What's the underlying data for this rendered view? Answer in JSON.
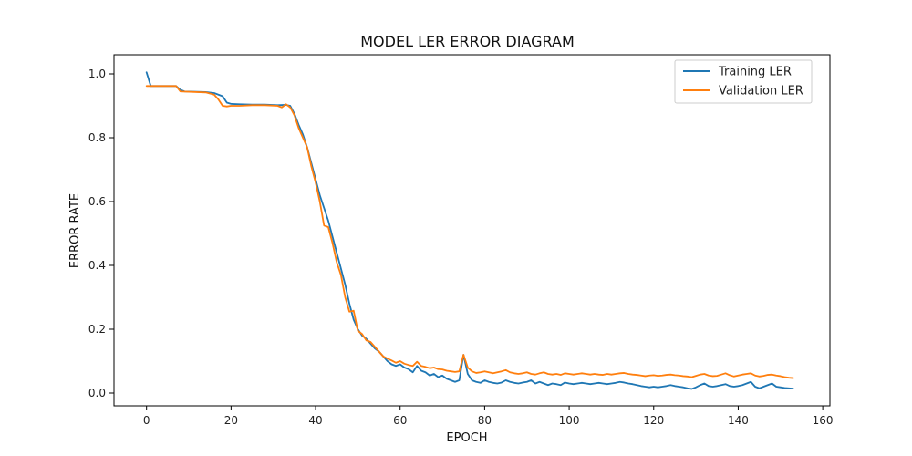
{
  "chart_data": {
    "type": "line",
    "title": "MODEL LER ERROR DIAGRAM",
    "xlabel": "EPOCH",
    "ylabel": "ERROR RATE",
    "xlim": [
      -7.7,
      161.7
    ],
    "ylim": [
      -0.04,
      1.06
    ],
    "xticks": [
      0,
      20,
      40,
      60,
      80,
      100,
      120,
      140,
      160
    ],
    "yticks": [
      0.0,
      0.2,
      0.4,
      0.6,
      0.8,
      1.0
    ],
    "xtick_labels": [
      "0",
      "20",
      "40",
      "60",
      "80",
      "100",
      "120",
      "140",
      "160"
    ],
    "ytick_labels": [
      "0.0",
      "0.2",
      "0.4",
      "0.6",
      "0.8",
      "1.0"
    ],
    "grid": false,
    "legend_position": "top-right",
    "legend": [
      "Training LER",
      "Validation LER"
    ],
    "series": [
      {
        "name": "Training LER",
        "color": "#1f77b4",
        "points": [
          [
            0,
            1.005
          ],
          [
            1,
            0.962
          ],
          [
            7,
            0.962
          ],
          [
            8,
            0.95
          ],
          [
            9,
            0.945
          ],
          [
            14,
            0.943
          ],
          [
            16,
            0.94
          ],
          [
            18,
            0.93
          ],
          [
            19,
            0.91
          ],
          [
            20,
            0.906
          ],
          [
            22,
            0.905
          ],
          [
            25,
            0.904
          ],
          [
            28,
            0.904
          ],
          [
            31,
            0.902
          ],
          [
            33,
            0.903
          ],
          [
            34,
            0.9
          ],
          [
            35,
            0.875
          ],
          [
            36,
            0.84
          ],
          [
            37,
            0.81
          ],
          [
            38,
            0.77
          ],
          [
            39,
            0.72
          ],
          [
            40,
            0.67
          ],
          [
            41,
            0.62
          ],
          [
            42,
            0.58
          ],
          [
            43,
            0.54
          ],
          [
            44,
            0.49
          ],
          [
            45,
            0.44
          ],
          [
            46,
            0.39
          ],
          [
            47,
            0.34
          ],
          [
            48,
            0.28
          ],
          [
            49,
            0.23
          ],
          [
            50,
            0.2
          ],
          [
            51,
            0.18
          ],
          [
            52,
            0.17
          ],
          [
            53,
            0.155
          ],
          [
            54,
            0.14
          ],
          [
            55,
            0.13
          ],
          [
            56,
            0.115
          ],
          [
            57,
            0.1
          ],
          [
            58,
            0.09
          ],
          [
            59,
            0.085
          ],
          [
            60,
            0.09
          ],
          [
            61,
            0.08
          ],
          [
            62,
            0.075
          ],
          [
            63,
            0.065
          ],
          [
            64,
            0.085
          ],
          [
            65,
            0.07
          ],
          [
            66,
            0.065
          ],
          [
            67,
            0.055
          ],
          [
            68,
            0.06
          ],
          [
            69,
            0.05
          ],
          [
            70,
            0.055
          ],
          [
            71,
            0.045
          ],
          [
            72,
            0.04
          ],
          [
            73,
            0.035
          ],
          [
            74,
            0.04
          ],
          [
            75,
            0.12
          ],
          [
            76,
            0.06
          ],
          [
            77,
            0.04
          ],
          [
            78,
            0.035
          ],
          [
            79,
            0.032
          ],
          [
            80,
            0.04
          ],
          [
            81,
            0.035
          ],
          [
            82,
            0.032
          ],
          [
            83,
            0.03
          ],
          [
            84,
            0.033
          ],
          [
            85,
            0.04
          ],
          [
            86,
            0.035
          ],
          [
            87,
            0.032
          ],
          [
            88,
            0.03
          ],
          [
            89,
            0.033
          ],
          [
            90,
            0.035
          ],
          [
            91,
            0.04
          ],
          [
            92,
            0.03
          ],
          [
            93,
            0.035
          ],
          [
            94,
            0.03
          ],
          [
            95,
            0.025
          ],
          [
            96,
            0.03
          ],
          [
            97,
            0.028
          ],
          [
            98,
            0.025
          ],
          [
            99,
            0.033
          ],
          [
            100,
            0.03
          ],
          [
            101,
            0.028
          ],
          [
            102,
            0.03
          ],
          [
            103,
            0.032
          ],
          [
            104,
            0.03
          ],
          [
            105,
            0.028
          ],
          [
            106,
            0.03
          ],
          [
            107,
            0.032
          ],
          [
            108,
            0.03
          ],
          [
            109,
            0.028
          ],
          [
            110,
            0.03
          ],
          [
            111,
            0.032
          ],
          [
            112,
            0.035
          ],
          [
            113,
            0.033
          ],
          [
            114,
            0.03
          ],
          [
            115,
            0.028
          ],
          [
            116,
            0.025
          ],
          [
            117,
            0.022
          ],
          [
            118,
            0.02
          ],
          [
            119,
            0.018
          ],
          [
            120,
            0.02
          ],
          [
            121,
            0.018
          ],
          [
            122,
            0.02
          ],
          [
            123,
            0.022
          ],
          [
            124,
            0.025
          ],
          [
            125,
            0.022
          ],
          [
            126,
            0.02
          ],
          [
            127,
            0.018
          ],
          [
            128,
            0.015
          ],
          [
            129,
            0.013
          ],
          [
            130,
            0.018
          ],
          [
            131,
            0.025
          ],
          [
            132,
            0.03
          ],
          [
            133,
            0.022
          ],
          [
            134,
            0.02
          ],
          [
            135,
            0.022
          ],
          [
            136,
            0.025
          ],
          [
            137,
            0.028
          ],
          [
            138,
            0.022
          ],
          [
            139,
            0.02
          ],
          [
            140,
            0.022
          ],
          [
            141,
            0.025
          ],
          [
            142,
            0.03
          ],
          [
            143,
            0.035
          ],
          [
            144,
            0.02
          ],
          [
            145,
            0.015
          ],
          [
            146,
            0.02
          ],
          [
            147,
            0.025
          ],
          [
            148,
            0.03
          ],
          [
            149,
            0.02
          ],
          [
            150,
            0.018
          ],
          [
            151,
            0.016
          ],
          [
            152,
            0.015
          ],
          [
            153,
            0.014
          ]
        ]
      },
      {
        "name": "Validation LER",
        "color": "#ff7f0e",
        "points": [
          [
            0,
            0.962
          ],
          [
            7,
            0.962
          ],
          [
            8,
            0.945
          ],
          [
            14,
            0.942
          ],
          [
            16,
            0.935
          ],
          [
            17,
            0.92
          ],
          [
            18,
            0.9
          ],
          [
            19,
            0.898
          ],
          [
            20,
            0.9
          ],
          [
            22,
            0.9
          ],
          [
            25,
            0.902
          ],
          [
            28,
            0.902
          ],
          [
            31,
            0.9
          ],
          [
            32,
            0.895
          ],
          [
            33,
            0.905
          ],
          [
            34,
            0.895
          ],
          [
            35,
            0.87
          ],
          [
            36,
            0.83
          ],
          [
            37,
            0.8
          ],
          [
            38,
            0.77
          ],
          [
            39,
            0.71
          ],
          [
            40,
            0.66
          ],
          [
            41,
            0.6
          ],
          [
            42,
            0.525
          ],
          [
            43,
            0.52
          ],
          [
            44,
            0.47
          ],
          [
            45,
            0.41
          ],
          [
            46,
            0.37
          ],
          [
            47,
            0.3
          ],
          [
            48,
            0.255
          ],
          [
            49,
            0.258
          ],
          [
            50,
            0.195
          ],
          [
            51,
            0.185
          ],
          [
            52,
            0.165
          ],
          [
            53,
            0.16
          ],
          [
            54,
            0.145
          ],
          [
            55,
            0.13
          ],
          [
            56,
            0.115
          ],
          [
            57,
            0.108
          ],
          [
            58,
            0.102
          ],
          [
            59,
            0.095
          ],
          [
            60,
            0.1
          ],
          [
            61,
            0.092
          ],
          [
            62,
            0.088
          ],
          [
            63,
            0.085
          ],
          [
            64,
            0.098
          ],
          [
            65,
            0.085
          ],
          [
            66,
            0.082
          ],
          [
            67,
            0.078
          ],
          [
            68,
            0.08
          ],
          [
            69,
            0.075
          ],
          [
            70,
            0.074
          ],
          [
            71,
            0.07
          ],
          [
            72,
            0.068
          ],
          [
            73,
            0.066
          ],
          [
            74,
            0.068
          ],
          [
            75,
            0.12
          ],
          [
            76,
            0.08
          ],
          [
            77,
            0.068
          ],
          [
            78,
            0.063
          ],
          [
            79,
            0.065
          ],
          [
            80,
            0.068
          ],
          [
            81,
            0.065
          ],
          [
            82,
            0.062
          ],
          [
            83,
            0.065
          ],
          [
            84,
            0.068
          ],
          [
            85,
            0.072
          ],
          [
            86,
            0.065
          ],
          [
            87,
            0.062
          ],
          [
            88,
            0.06
          ],
          [
            89,
            0.062
          ],
          [
            90,
            0.065
          ],
          [
            91,
            0.06
          ],
          [
            92,
            0.058
          ],
          [
            93,
            0.062
          ],
          [
            94,
            0.065
          ],
          [
            95,
            0.06
          ],
          [
            96,
            0.058
          ],
          [
            97,
            0.06
          ],
          [
            98,
            0.057
          ],
          [
            99,
            0.062
          ],
          [
            100,
            0.06
          ],
          [
            101,
            0.058
          ],
          [
            102,
            0.06
          ],
          [
            103,
            0.062
          ],
          [
            104,
            0.06
          ],
          [
            105,
            0.058
          ],
          [
            106,
            0.06
          ],
          [
            107,
            0.058
          ],
          [
            108,
            0.057
          ],
          [
            109,
            0.06
          ],
          [
            110,
            0.058
          ],
          [
            111,
            0.06
          ],
          [
            112,
            0.062
          ],
          [
            113,
            0.063
          ],
          [
            114,
            0.06
          ],
          [
            115,
            0.058
          ],
          [
            116,
            0.057
          ],
          [
            117,
            0.055
          ],
          [
            118,
            0.053
          ],
          [
            119,
            0.055
          ],
          [
            120,
            0.056
          ],
          [
            121,
            0.054
          ],
          [
            122,
            0.055
          ],
          [
            123,
            0.057
          ],
          [
            124,
            0.058
          ],
          [
            125,
            0.056
          ],
          [
            126,
            0.055
          ],
          [
            127,
            0.053
          ],
          [
            128,
            0.052
          ],
          [
            129,
            0.05
          ],
          [
            130,
            0.054
          ],
          [
            131,
            0.058
          ],
          [
            132,
            0.06
          ],
          [
            133,
            0.055
          ],
          [
            134,
            0.053
          ],
          [
            135,
            0.054
          ],
          [
            136,
            0.058
          ],
          [
            137,
            0.062
          ],
          [
            138,
            0.056
          ],
          [
            139,
            0.052
          ],
          [
            140,
            0.055
          ],
          [
            141,
            0.058
          ],
          [
            142,
            0.06
          ],
          [
            143,
            0.062
          ],
          [
            144,
            0.055
          ],
          [
            145,
            0.052
          ],
          [
            146,
            0.054
          ],
          [
            147,
            0.057
          ],
          [
            148,
            0.058
          ],
          [
            149,
            0.055
          ],
          [
            150,
            0.053
          ],
          [
            151,
            0.05
          ],
          [
            152,
            0.048
          ],
          [
            153,
            0.047
          ]
        ]
      }
    ]
  }
}
